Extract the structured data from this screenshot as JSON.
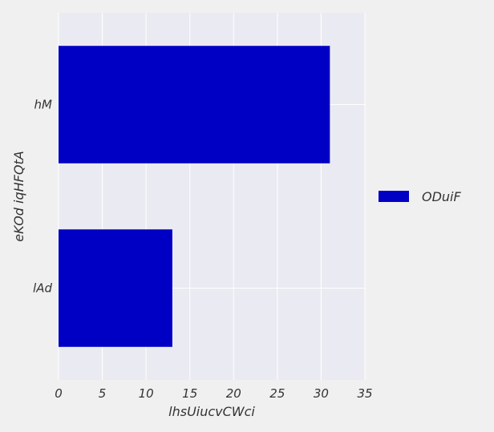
{
  "chart_data": {
    "type": "bar",
    "orientation": "horizontal",
    "categories": [
      "lAd",
      "hM"
    ],
    "series": [
      {
        "name": "ODuiF",
        "values": [
          13,
          31
        ],
        "color": "#0000c4"
      }
    ],
    "xlabel": "lhsUiucvCWci",
    "ylabel": "eKOd iqHFQtA",
    "xlim": [
      0,
      35
    ],
    "xticks": [
      0,
      5,
      10,
      15,
      20,
      25,
      30,
      35
    ],
    "grid": true,
    "legend_position": "right",
    "background_color": "#eaeaf2",
    "page_color": "#f0f0f0"
  }
}
